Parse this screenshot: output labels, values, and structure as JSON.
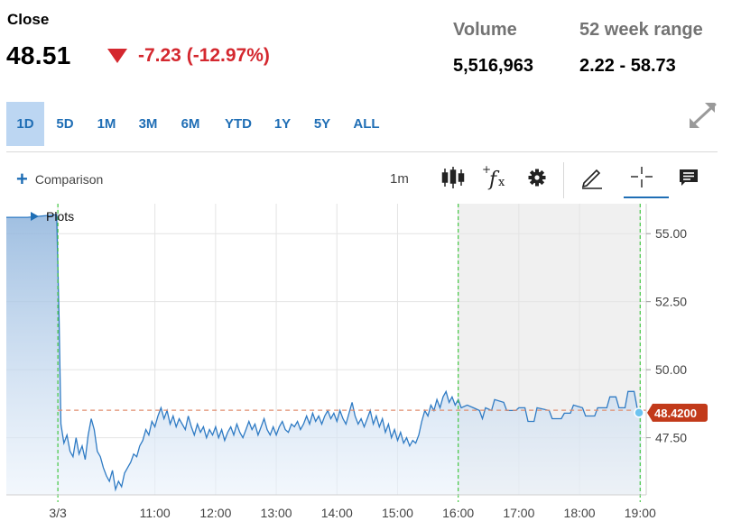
{
  "quote": {
    "close_label": "Close",
    "price": "48.51",
    "change": "-7.23 (-12.97%)",
    "volume_label": "Volume",
    "volume_value": "5,516,963",
    "range_label": "52 week range",
    "range_value": "2.22 - 58.73"
  },
  "timeframes": [
    "1D",
    "5D",
    "1M",
    "3M",
    "6M",
    "YTD",
    "1Y",
    "5Y",
    "ALL"
  ],
  "active_timeframe": "1D",
  "toolbar": {
    "comparison_label": "Comparison",
    "interval_label": "1m",
    "icons": [
      "candlestick-icon",
      "fx-indicators-icon",
      "gear-icon",
      "pencil-draw-icon",
      "crosshair-icon",
      "comment-icon"
    ]
  },
  "plots_label": "Plots",
  "colors": {
    "accent": "#1f6eb5",
    "down": "#d4282f",
    "line": "#2f7bc4",
    "last_price_tag": "#c23a1a",
    "session_marker": "#44c744",
    "extended_hours_shade": "#f0f0f0"
  },
  "chart_data": {
    "type": "area",
    "ylim": [
      45.4,
      56.1
    ],
    "y_ticks": [
      "55.00",
      "52.50",
      "50.00",
      "47.50"
    ],
    "y_tick_values": [
      55.0,
      52.5,
      50.0,
      47.5
    ],
    "x_ticks": [
      "3/3",
      "11:00",
      "12:00",
      "13:00",
      "14:00",
      "15:00",
      "16:00",
      "17:00",
      "18:00",
      "19:00"
    ],
    "x_tick_hours": [
      9.4,
      11,
      12,
      13,
      14,
      15,
      16,
      17,
      18,
      19
    ],
    "x_range_hours": [
      8.55,
      19.1
    ],
    "previous_close": 48.51,
    "last_price": "48.4200",
    "last_price_value": 48.42,
    "extended_hours_start": 16.0,
    "extended_hours_end": 19.0,
    "grid": true,
    "series": [
      {
        "points": [
          [
            8.55,
            55.6
          ],
          [
            8.9,
            55.6
          ],
          [
            9.38,
            55.7
          ],
          [
            9.42,
            51.8
          ],
          [
            9.45,
            48.0
          ],
          [
            9.5,
            47.3
          ],
          [
            9.55,
            47.6
          ],
          [
            9.6,
            47.0
          ],
          [
            9.65,
            46.8
          ],
          [
            9.7,
            47.5
          ],
          [
            9.75,
            46.9
          ],
          [
            9.8,
            47.2
          ],
          [
            9.85,
            46.7
          ],
          [
            9.9,
            47.6
          ],
          [
            9.95,
            48.2
          ],
          [
            10.0,
            47.8
          ],
          [
            10.05,
            47.0
          ],
          [
            10.1,
            46.8
          ],
          [
            10.15,
            46.4
          ],
          [
            10.2,
            46.1
          ],
          [
            10.25,
            45.9
          ],
          [
            10.3,
            46.3
          ],
          [
            10.35,
            45.6
          ],
          [
            10.4,
            45.9
          ],
          [
            10.45,
            45.7
          ],
          [
            10.5,
            46.2
          ],
          [
            10.55,
            46.4
          ],
          [
            10.6,
            46.6
          ],
          [
            10.65,
            46.9
          ],
          [
            10.7,
            46.8
          ],
          [
            10.75,
            47.2
          ],
          [
            10.8,
            47.4
          ],
          [
            10.85,
            47.8
          ],
          [
            10.9,
            47.6
          ],
          [
            10.95,
            48.1
          ],
          [
            11.0,
            47.9
          ],
          [
            11.05,
            48.3
          ],
          [
            11.1,
            48.6
          ],
          [
            11.15,
            48.2
          ],
          [
            11.2,
            48.5
          ],
          [
            11.25,
            48.0
          ],
          [
            11.3,
            48.3
          ],
          [
            11.35,
            47.9
          ],
          [
            11.4,
            48.2
          ],
          [
            11.45,
            48.0
          ],
          [
            11.5,
            47.8
          ],
          [
            11.55,
            48.3
          ],
          [
            11.6,
            47.9
          ],
          [
            11.65,
            47.6
          ],
          [
            11.7,
            48.0
          ],
          [
            11.75,
            47.7
          ],
          [
            11.8,
            47.9
          ],
          [
            11.85,
            47.5
          ],
          [
            11.9,
            47.8
          ],
          [
            11.95,
            47.6
          ],
          [
            12.0,
            47.9
          ],
          [
            12.05,
            47.5
          ],
          [
            12.1,
            47.8
          ],
          [
            12.15,
            47.4
          ],
          [
            12.2,
            47.7
          ],
          [
            12.25,
            47.9
          ],
          [
            12.3,
            47.6
          ],
          [
            12.35,
            48.0
          ],
          [
            12.4,
            47.7
          ],
          [
            12.45,
            47.5
          ],
          [
            12.5,
            47.8
          ],
          [
            12.55,
            48.1
          ],
          [
            12.6,
            47.8
          ],
          [
            12.65,
            48.0
          ],
          [
            12.7,
            47.6
          ],
          [
            12.75,
            47.9
          ],
          [
            12.8,
            48.2
          ],
          [
            12.85,
            47.8
          ],
          [
            12.9,
            47.6
          ],
          [
            12.95,
            47.9
          ],
          [
            13.0,
            47.6
          ],
          [
            13.05,
            47.9
          ],
          [
            13.1,
            48.1
          ],
          [
            13.15,
            47.8
          ],
          [
            13.2,
            47.7
          ],
          [
            13.25,
            48.0
          ],
          [
            13.3,
            47.9
          ],
          [
            13.35,
            48.1
          ],
          [
            13.4,
            47.8
          ],
          [
            13.45,
            48.0
          ],
          [
            13.5,
            48.3
          ],
          [
            13.55,
            48.0
          ],
          [
            13.6,
            48.4
          ],
          [
            13.65,
            48.1
          ],
          [
            13.7,
            48.3
          ],
          [
            13.75,
            48.0
          ],
          [
            13.8,
            48.3
          ],
          [
            13.85,
            48.5
          ],
          [
            13.9,
            48.2
          ],
          [
            13.95,
            48.4
          ],
          [
            14.0,
            48.1
          ],
          [
            14.05,
            48.5
          ],
          [
            14.1,
            48.2
          ],
          [
            14.15,
            48.0
          ],
          [
            14.2,
            48.4
          ],
          [
            14.25,
            48.8
          ],
          [
            14.3,
            48.3
          ],
          [
            14.35,
            48.0
          ],
          [
            14.4,
            48.2
          ],
          [
            14.45,
            47.9
          ],
          [
            14.5,
            48.2
          ],
          [
            14.55,
            48.5
          ],
          [
            14.6,
            48.0
          ],
          [
            14.65,
            48.3
          ],
          [
            14.7,
            47.9
          ],
          [
            14.75,
            48.2
          ],
          [
            14.8,
            47.7
          ],
          [
            14.85,
            48.0
          ],
          [
            14.9,
            47.5
          ],
          [
            14.95,
            47.8
          ],
          [
            15.0,
            47.4
          ],
          [
            15.05,
            47.7
          ],
          [
            15.1,
            47.3
          ],
          [
            15.15,
            47.5
          ],
          [
            15.2,
            47.2
          ],
          [
            15.25,
            47.4
          ],
          [
            15.3,
            47.3
          ],
          [
            15.35,
            47.6
          ],
          [
            15.4,
            48.1
          ],
          [
            15.45,
            48.5
          ],
          [
            15.5,
            48.3
          ],
          [
            15.55,
            48.7
          ],
          [
            15.6,
            48.5
          ],
          [
            15.65,
            48.9
          ],
          [
            15.7,
            48.6
          ],
          [
            15.75,
            49.0
          ],
          [
            15.8,
            49.2
          ],
          [
            15.85,
            48.8
          ],
          [
            15.9,
            49.0
          ],
          [
            15.95,
            48.7
          ],
          [
            16.0,
            48.9
          ],
          [
            16.05,
            48.6
          ],
          [
            16.15,
            48.7
          ],
          [
            16.25,
            48.6
          ],
          [
            16.35,
            48.5
          ],
          [
            16.4,
            48.2
          ],
          [
            16.45,
            48.6
          ],
          [
            16.55,
            48.5
          ],
          [
            16.6,
            48.9
          ],
          [
            16.75,
            48.8
          ],
          [
            16.8,
            48.5
          ],
          [
            16.95,
            48.5
          ],
          [
            17.0,
            48.6
          ],
          [
            17.1,
            48.6
          ],
          [
            17.15,
            48.1
          ],
          [
            17.25,
            48.1
          ],
          [
            17.3,
            48.6
          ],
          [
            17.5,
            48.5
          ],
          [
            17.55,
            48.2
          ],
          [
            17.7,
            48.2
          ],
          [
            17.75,
            48.4
          ],
          [
            17.85,
            48.4
          ],
          [
            17.9,
            48.7
          ],
          [
            18.05,
            48.6
          ],
          [
            18.1,
            48.3
          ],
          [
            18.25,
            48.3
          ],
          [
            18.3,
            48.6
          ],
          [
            18.45,
            48.6
          ],
          [
            18.5,
            49.0
          ],
          [
            18.6,
            49.0
          ],
          [
            18.65,
            48.6
          ],
          [
            18.75,
            48.6
          ],
          [
            18.8,
            49.2
          ],
          [
            18.9,
            49.2
          ],
          [
            18.95,
            48.6
          ],
          [
            19.0,
            48.5
          ],
          [
            19.02,
            48.42
          ]
        ]
      }
    ]
  }
}
